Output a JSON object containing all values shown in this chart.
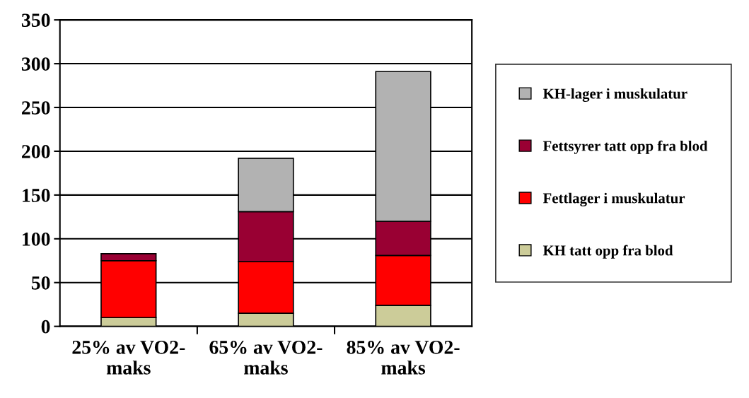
{
  "chart_data": {
    "type": "bar",
    "stacked": true,
    "categories": [
      "25% av VO2-\nmaks",
      "65% av VO2-\nmaks",
      "85% av VO2-\nmaks"
    ],
    "series": [
      {
        "name": "KH tatt opp fra blod",
        "color": "#cccc99",
        "values": [
          10,
          15,
          24
        ]
      },
      {
        "name": "Fettlager i muskulatur",
        "color": "#ff0000",
        "values": [
          65,
          59,
          57
        ]
      },
      {
        "name": "Fettsyrer tatt opp fra blod",
        "color": "#990033",
        "values": [
          8,
          57,
          39
        ]
      },
      {
        "name": "KH-lager i muskulatur",
        "color": "#b2b2b2",
        "values": [
          null,
          61,
          171
        ]
      }
    ],
    "ylim": [
      0,
      350
    ],
    "yticks": [
      0,
      50,
      100,
      150,
      200,
      250,
      300,
      350
    ],
    "grid": "y",
    "legend": "right"
  }
}
